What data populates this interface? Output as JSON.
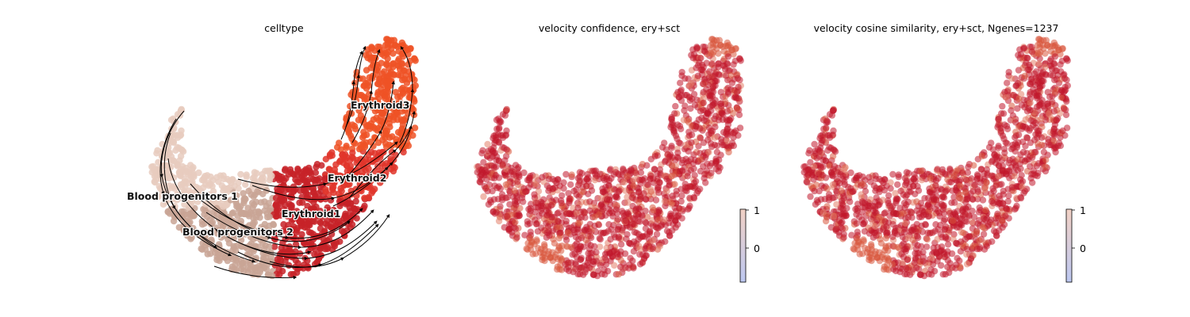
{
  "chart_data": [
    {
      "type": "scatter",
      "title": "celltype",
      "legend_placement": "on-data",
      "streamlines": true,
      "grid": false,
      "categories": [
        {
          "name": "Blood progenitors 1",
          "color": "#e8cbbe"
        },
        {
          "name": "Blood progenitors 2",
          "color": "#c9a595"
        },
        {
          "name": "Erythroid1",
          "color": "#c72228"
        },
        {
          "name": "Erythroid2",
          "color": "#e0352a"
        },
        {
          "name": "Erythroid3",
          "color": "#ef5226"
        }
      ]
    },
    {
      "type": "scatter",
      "title": "velocity confidence, ery+sct",
      "colormap": "coolwarm",
      "point_color": "#c1172c",
      "grid": false,
      "colorbar": {
        "ticks": [
          "1",
          "0"
        ],
        "top_color": "#f1d0c4",
        "bottom_color": "#bcc7f0"
      }
    },
    {
      "type": "scatter",
      "title": "velocity cosine similarity, ery+sct, Ngenes=1237",
      "colormap": "coolwarm",
      "point_color": "#c1172c",
      "grid": false,
      "colorbar": {
        "ticks": [
          "1",
          "0"
        ],
        "top_color": "#f1d0c4",
        "bottom_color": "#bcc7f0"
      }
    }
  ]
}
